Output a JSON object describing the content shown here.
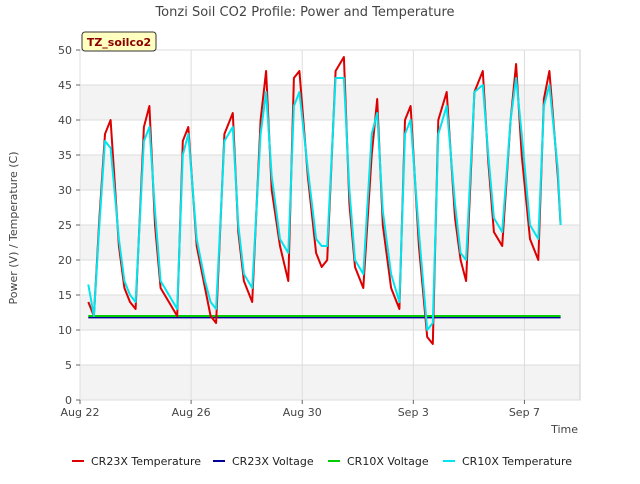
{
  "chart_data": {
    "type": "line",
    "title": "Tonzi Soil CO2 Profile: Power and Temperature",
    "station_label": "TZ_soilco2",
    "xlabel": "Time",
    "ylabel": "Power (V) / Temperature (C)",
    "x_range_days": [
      0,
      18
    ],
    "ylim": [
      0,
      50
    ],
    "yticks": [
      0,
      5,
      10,
      15,
      20,
      25,
      30,
      35,
      40,
      45,
      50
    ],
    "xticks": [
      {
        "day": 0,
        "label": "Aug 22"
      },
      {
        "day": 4,
        "label": "Aug 26"
      },
      {
        "day": 8,
        "label": "Aug 30"
      },
      {
        "day": 12,
        "label": "Sep 3"
      },
      {
        "day": 16,
        "label": "Sep 7"
      }
    ],
    "grid": true,
    "legend_position": "bottom",
    "series": [
      {
        "name": "CR23X Temperature",
        "color": "#dd0000",
        "x": [
          0.3,
          0.5,
          0.7,
          0.9,
          1.1,
          1.4,
          1.6,
          1.8,
          2.0,
          2.3,
          2.5,
          2.7,
          2.9,
          3.2,
          3.5,
          3.7,
          3.9,
          4.2,
          4.5,
          4.7,
          4.9,
          5.2,
          5.5,
          5.7,
          5.9,
          6.2,
          6.5,
          6.7,
          6.9,
          7.2,
          7.5,
          7.7,
          7.9,
          8.2,
          8.5,
          8.7,
          8.9,
          9.2,
          9.5,
          9.7,
          9.9,
          10.2,
          10.5,
          10.7,
          10.9,
          11.2,
          11.5,
          11.7,
          11.9,
          12.2,
          12.5,
          12.7,
          12.9,
          13.2,
          13.5,
          13.7,
          13.9,
          14.2,
          14.5,
          14.7,
          14.9,
          15.2,
          15.5,
          15.7,
          15.9,
          16.2,
          16.5,
          16.7,
          16.9,
          17.2,
          17.3
        ],
        "values": [
          14,
          12,
          26,
          38,
          40,
          22,
          16,
          14,
          13,
          39,
          42,
          25,
          16,
          14,
          12,
          37,
          39,
          22,
          16,
          12,
          11,
          38,
          41,
          24,
          17,
          14,
          40,
          47,
          30,
          22,
          17,
          46,
          47,
          32,
          21,
          19,
          20,
          47,
          49,
          28,
          19,
          16,
          35,
          43,
          25,
          16,
          13,
          40,
          42,
          22,
          9,
          8,
          40,
          44,
          26,
          20,
          17,
          44,
          47,
          34,
          24,
          22,
          40,
          48,
          35,
          23,
          20,
          43,
          47,
          32,
          25
        ]
      },
      {
        "name": "CR23X Voltage",
        "color": "#000099",
        "x": [
          0.3,
          17.3
        ],
        "values": [
          11.8,
          11.8
        ]
      },
      {
        "name": "CR10X Voltage",
        "color": "#00cc00",
        "x": [
          0.3,
          17.3
        ],
        "values": [
          12.0,
          12.0
        ]
      },
      {
        "name": "CR10X Temperature",
        "color": "#00e5ee",
        "x": [
          0.3,
          0.5,
          0.7,
          0.9,
          1.1,
          1.4,
          1.6,
          1.8,
          2.0,
          2.3,
          2.5,
          2.7,
          2.9,
          3.2,
          3.5,
          3.7,
          3.9,
          4.2,
          4.5,
          4.7,
          4.9,
          5.2,
          5.5,
          5.7,
          5.9,
          6.2,
          6.5,
          6.7,
          6.9,
          7.2,
          7.5,
          7.7,
          7.9,
          8.2,
          8.5,
          8.7,
          8.9,
          9.2,
          9.5,
          9.7,
          9.9,
          10.2,
          10.5,
          10.7,
          10.9,
          11.2,
          11.5,
          11.7,
          11.9,
          12.2,
          12.5,
          12.7,
          12.9,
          13.2,
          13.5,
          13.7,
          13.9,
          14.2,
          14.5,
          14.7,
          14.9,
          15.2,
          15.5,
          15.7,
          15.9,
          16.2,
          16.5,
          16.7,
          16.9,
          17.2,
          17.3
        ],
        "values": [
          16.5,
          12,
          25,
          37,
          36,
          23,
          17,
          15,
          14,
          37,
          39,
          27,
          17,
          15,
          13,
          35,
          38,
          23,
          17,
          14,
          13,
          37,
          39,
          25,
          18,
          16,
          38,
          44,
          32,
          23,
          21,
          42,
          44,
          33,
          23,
          22,
          22,
          46,
          46,
          30,
          20,
          18,
          38,
          41,
          27,
          18,
          14,
          38,
          40,
          24,
          10,
          11,
          38,
          42,
          28,
          21,
          20,
          44,
          45,
          35,
          26,
          24,
          40,
          46,
          38,
          25,
          23,
          42,
          45,
          33,
          25
        ]
      }
    ]
  }
}
